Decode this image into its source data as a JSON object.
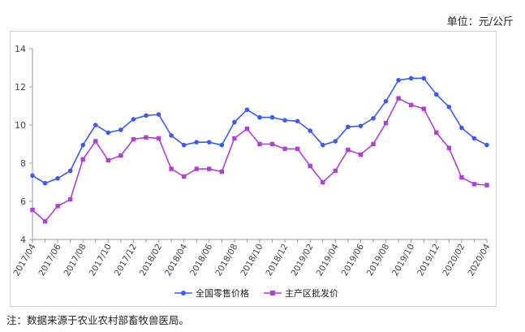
{
  "unit_label": "单位：元/公斤",
  "note": "注：数据来源于农业农村部畜牧兽医局。",
  "colors": {
    "series1": "#3b5bf0",
    "series2": "#b03fd6",
    "axis": "#9a9a9a",
    "text": "#444444"
  },
  "chart_data": {
    "type": "line",
    "title": "",
    "xlabel": "",
    "ylabel": "",
    "ylim": [
      4,
      14
    ],
    "yticks": [
      4,
      6,
      8,
      10,
      12,
      14
    ],
    "grid": false,
    "legend_position": "bottom",
    "x": [
      "2017/04",
      "2017/05",
      "2017/06",
      "2017/07",
      "2017/08",
      "2017/09",
      "2017/10",
      "2017/11",
      "2017/12",
      "2018/01",
      "2018/02",
      "2018/03",
      "2018/04",
      "2018/05",
      "2018/06",
      "2018/07",
      "2018/08",
      "2018/09",
      "2018/10",
      "2018/11",
      "2018/12",
      "2019/01",
      "2019/02",
      "2019/03",
      "2019/04",
      "2019/05",
      "2019/06",
      "2019/07",
      "2019/08",
      "2019/09",
      "2019/10",
      "2019/11",
      "2019/12",
      "2020/01",
      "2020/02",
      "2020/03",
      "2020/04"
    ],
    "xtick_labels": [
      "2017/04",
      "2017/06",
      "2017/08",
      "2017/10",
      "2017/12",
      "2018/02",
      "2018/04",
      "2018/06",
      "2018/08",
      "2018/10",
      "2018/12",
      "2019/02",
      "2019/04",
      "2019/06",
      "2019/08",
      "2019/10",
      "2019/12",
      "2020/02",
      "2020/04"
    ],
    "series": [
      {
        "name": "全国零售价格",
        "values": [
          7.35,
          6.95,
          7.2,
          7.6,
          8.95,
          10.0,
          9.6,
          9.75,
          10.3,
          10.5,
          10.55,
          9.45,
          8.95,
          9.1,
          9.1,
          8.95,
          10.15,
          10.8,
          10.4,
          10.4,
          10.25,
          10.2,
          9.7,
          8.95,
          9.15,
          9.9,
          9.95,
          10.35,
          11.25,
          12.35,
          12.45,
          12.45,
          11.6,
          10.95,
          9.85,
          9.3,
          8.95
        ]
      },
      {
        "name": "主产区批发价",
        "values": [
          5.55,
          4.95,
          5.75,
          6.1,
          8.2,
          9.15,
          8.15,
          8.4,
          9.25,
          9.35,
          9.3,
          7.7,
          7.3,
          7.7,
          7.7,
          7.55,
          9.3,
          9.8,
          9.0,
          9.0,
          8.75,
          8.75,
          7.85,
          7.0,
          7.6,
          8.7,
          8.45,
          9.0,
          10.1,
          11.4,
          11.05,
          10.85,
          9.6,
          8.8,
          7.25,
          6.9,
          6.85
        ]
      }
    ]
  }
}
